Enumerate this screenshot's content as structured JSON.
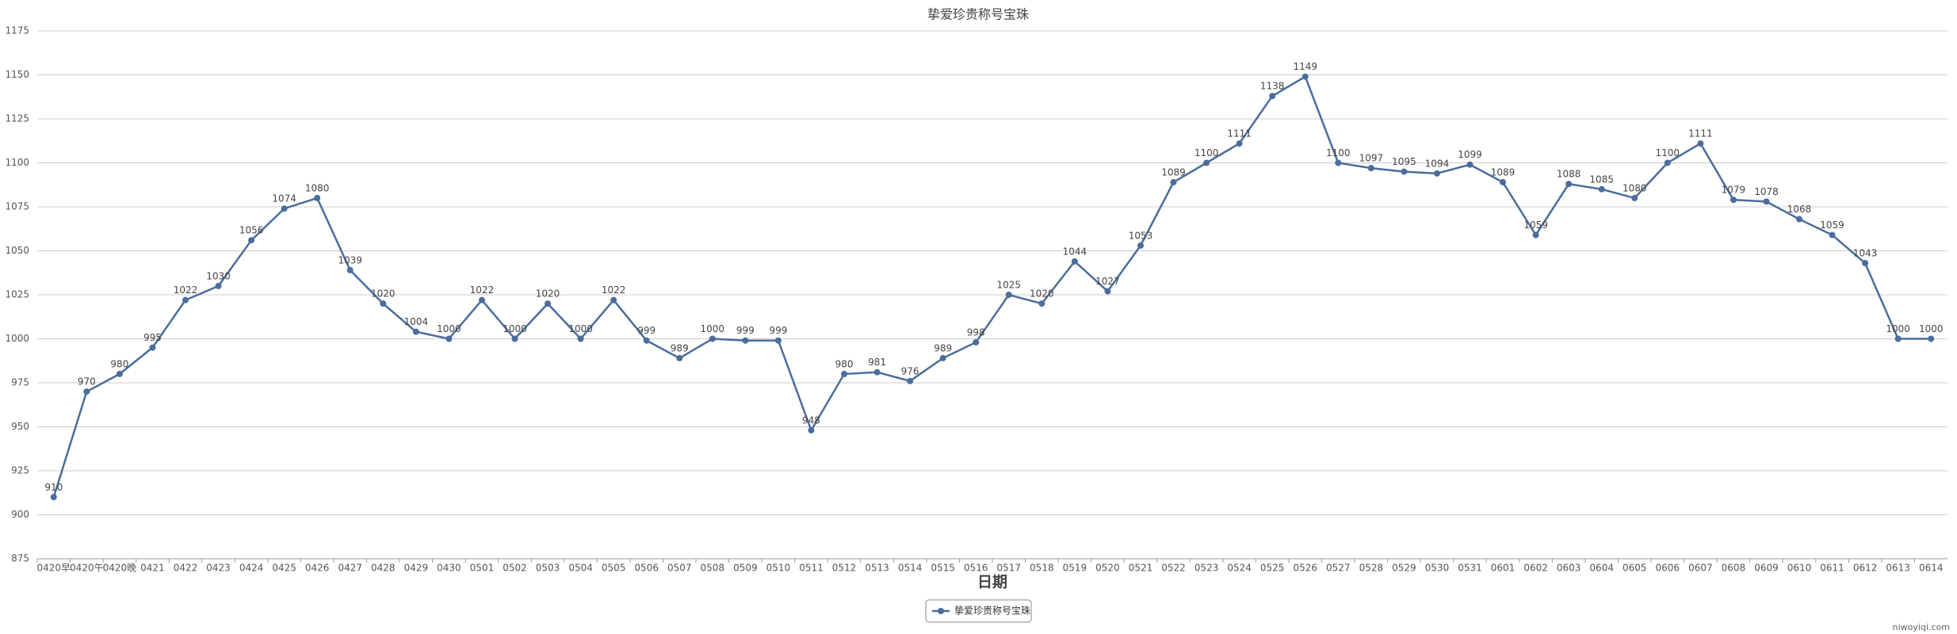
{
  "chart_data": {
    "type": "line",
    "title": "挚爱珍贵称号宝珠",
    "x_label": "日期",
    "categories": [
      "0420早",
      "0420午",
      "0420晚",
      "0421",
      "0422",
      "0423",
      "0424",
      "0425",
      "0426",
      "0427",
      "0428",
      "0429",
      "0430",
      "0501",
      "0502",
      "0503",
      "0504",
      "0505",
      "0506",
      "0507",
      "0508",
      "0509",
      "0510",
      "0511",
      "0512",
      "0513",
      "0514",
      "0515",
      "0516",
      "0517",
      "0518",
      "0519",
      "0520",
      "0521",
      "0522",
      "0523",
      "0524",
      "0525",
      "0526",
      "0527",
      "0528",
      "0529",
      "0530",
      "0531",
      "0601",
      "0602",
      "0603",
      "0604",
      "0605",
      "0606",
      "0607",
      "0608",
      "0609",
      "0610",
      "0611",
      "0612",
      "0613",
      "0614"
    ],
    "series": [
      {
        "name": "挚爱珍贵称号宝珠",
        "color": "#4a6d9c",
        "values": [
          910,
          970,
          980,
          995,
          1022,
          1030,
          1056,
          1074,
          1080,
          1039,
          1020,
          1004,
          1000,
          1022,
          1000,
          1020,
          1000,
          1022,
          999,
          989,
          1000,
          999,
          999,
          948,
          980,
          981,
          976,
          989,
          998,
          1025,
          1020,
          1044,
          1027,
          1053,
          1089,
          1100,
          1111,
          1138,
          1149,
          1100,
          1097,
          1095,
          1094,
          1099,
          1089,
          1059,
          1088,
          1085,
          1080,
          1100,
          1111,
          1079,
          1078,
          1068,
          1059,
          1043,
          1000,
          1000
        ]
      }
    ],
    "ylim": [
      875,
      1175
    ],
    "yticks": [
      875,
      900,
      925,
      950,
      975,
      1000,
      1025,
      1050,
      1075,
      1100,
      1125,
      1150,
      1175
    ],
    "grid": true,
    "legend_position": "bottom",
    "watermark": "niwoyiqi.com"
  }
}
